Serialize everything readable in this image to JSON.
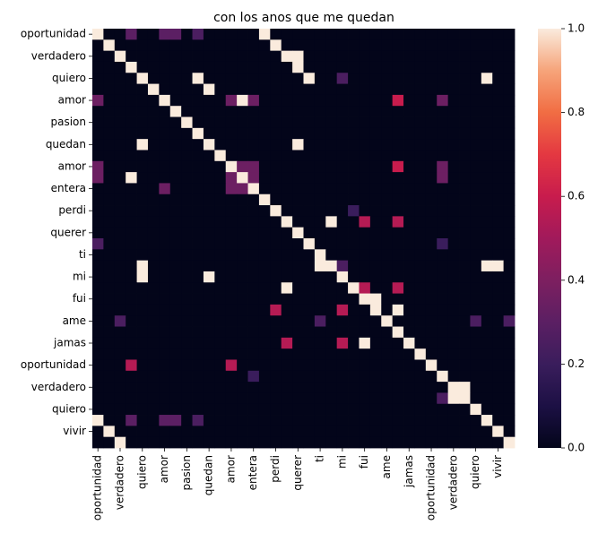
{
  "chart_data": {
    "type": "heatmap",
    "title": "con los anos que me quedan",
    "xlabel": "",
    "ylabel": "",
    "tokens": [
      "oportunidad",
      "",
      "verdadero",
      "",
      "quiero",
      "",
      "amor",
      "",
      "pasion",
      "",
      "quedan",
      "",
      "amor",
      "",
      "entera",
      "",
      "perdi",
      "",
      "querer",
      "",
      "ti",
      "",
      "mi",
      "",
      "fui",
      "",
      "ame",
      "",
      "jamas",
      "",
      "oportunidad",
      "",
      "verdadero",
      "",
      "quiero",
      "",
      "vivir",
      ""
    ],
    "x_tick_labels": [
      "oportunidad",
      "verdadero",
      "quiero",
      "amor",
      "pasion",
      "quedan",
      "amor",
      "entera",
      "perdi",
      "querer",
      "ti",
      "mi",
      "fui",
      "ame",
      "jamas",
      "oportunidad",
      "verdadero",
      "quiero",
      "vivir"
    ],
    "y_tick_labels": [
      "oportunidad",
      "verdadero",
      "quiero",
      "amor",
      "pasion",
      "quedan",
      "amor",
      "entera",
      "perdi",
      "querer",
      "ti",
      "mi",
      "fui",
      "ame",
      "jamas",
      "oportunidad",
      "verdadero",
      "quiero",
      "vivir"
    ],
    "value_range": [
      0,
      1
    ],
    "colormap": "rocket",
    "colorbar_ticks": [
      "0.0",
      "0.2",
      "0.4",
      "0.6",
      "0.8",
      "1.0"
    ],
    "nonzero_cells": [
      [
        0,
        0,
        1
      ],
      [
        0,
        3,
        0.3
      ],
      [
        0,
        6,
        0.3
      ],
      [
        0,
        7,
        0.3
      ],
      [
        0,
        9,
        0.25
      ],
      [
        0,
        15,
        1
      ],
      [
        1,
        1,
        1
      ],
      [
        1,
        16,
        1
      ],
      [
        2,
        2,
        1
      ],
      [
        2,
        17,
        1
      ],
      [
        2,
        18,
        1
      ],
      [
        3,
        3,
        1
      ],
      [
        3,
        18,
        1
      ],
      [
        4,
        4,
        1
      ],
      [
        4,
        9,
        1
      ],
      [
        4,
        19,
        1
      ],
      [
        4,
        22,
        0.25
      ],
      [
        4,
        35,
        1
      ],
      [
        5,
        5,
        1
      ],
      [
        5,
        10,
        1
      ],
      [
        6,
        0,
        0.35
      ],
      [
        6,
        6,
        1
      ],
      [
        6,
        12,
        0.35
      ],
      [
        6,
        13,
        1
      ],
      [
        6,
        14,
        0.35
      ],
      [
        6,
        27,
        0.6
      ],
      [
        6,
        31,
        0.35
      ],
      [
        7,
        7,
        1
      ],
      [
        8,
        8,
        1
      ],
      [
        9,
        9,
        1
      ],
      [
        10,
        10,
        1
      ],
      [
        10,
        4,
        1
      ],
      [
        10,
        18,
        1
      ],
      [
        11,
        11,
        1
      ],
      [
        12,
        0,
        0.35
      ],
      [
        12,
        12,
        1
      ],
      [
        12,
        13,
        0.35
      ],
      [
        12,
        14,
        0.35
      ],
      [
        12,
        27,
        0.6
      ],
      [
        12,
        31,
        0.35
      ],
      [
        13,
        0,
        0.35
      ],
      [
        13,
        3,
        1
      ],
      [
        13,
        12,
        0.35
      ],
      [
        13,
        13,
        1
      ],
      [
        13,
        14,
        0.35
      ],
      [
        13,
        31,
        0.35
      ],
      [
        14,
        6,
        0.35
      ],
      [
        14,
        12,
        0.35
      ],
      [
        14,
        13,
        0.35
      ],
      [
        14,
        14,
        1
      ],
      [
        15,
        15,
        1
      ],
      [
        16,
        16,
        1
      ],
      [
        16,
        23,
        0.2
      ],
      [
        17,
        17,
        1
      ],
      [
        17,
        21,
        1
      ],
      [
        17,
        24,
        0.55
      ],
      [
        17,
        27,
        0.55
      ],
      [
        18,
        18,
        1
      ],
      [
        19,
        0,
        0.25
      ],
      [
        19,
        19,
        1
      ],
      [
        19,
        31,
        0.2
      ],
      [
        20,
        20,
        1
      ],
      [
        21,
        4,
        1
      ],
      [
        21,
        20,
        1
      ],
      [
        21,
        21,
        1
      ],
      [
        21,
        22,
        0.25
      ],
      [
        21,
        35,
        1
      ],
      [
        21,
        36,
        1
      ],
      [
        22,
        4,
        1
      ],
      [
        22,
        10,
        1
      ],
      [
        22,
        22,
        1
      ],
      [
        23,
        17,
        1
      ],
      [
        23,
        23,
        1
      ],
      [
        23,
        24,
        0.55
      ],
      [
        23,
        27,
        0.55
      ],
      [
        24,
        24,
        1
      ],
      [
        24,
        25,
        1
      ],
      [
        25,
        16,
        0.55
      ],
      [
        25,
        22,
        0.55
      ],
      [
        25,
        25,
        1
      ],
      [
        25,
        27,
        1
      ],
      [
        26,
        2,
        0.25
      ],
      [
        26,
        20,
        0.25
      ],
      [
        26,
        26,
        1
      ],
      [
        26,
        34,
        0.25
      ],
      [
        26,
        37,
        0.25
      ],
      [
        27,
        27,
        1
      ],
      [
        28,
        17,
        0.55
      ],
      [
        28,
        22,
        0.55
      ],
      [
        28,
        24,
        1
      ],
      [
        28,
        28,
        1
      ],
      [
        29,
        29,
        1
      ],
      [
        30,
        3,
        0.55
      ],
      [
        30,
        12,
        0.55
      ],
      [
        30,
        30,
        1
      ],
      [
        31,
        14,
        0.2
      ],
      [
        31,
        31,
        1
      ],
      [
        32,
        32,
        1
      ],
      [
        32,
        33,
        1
      ],
      [
        33,
        33,
        1
      ],
      [
        33,
        31,
        0.25
      ],
      [
        33,
        32,
        1
      ],
      [
        34,
        34,
        1
      ],
      [
        35,
        0,
        1
      ],
      [
        35,
        3,
        0.3
      ],
      [
        35,
        6,
        0.3
      ],
      [
        35,
        7,
        0.3
      ],
      [
        35,
        9,
        0.25
      ],
      [
        35,
        35,
        1
      ],
      [
        36,
        1,
        1
      ],
      [
        36,
        36,
        1
      ],
      [
        37,
        2,
        1
      ],
      [
        37,
        37,
        1
      ]
    ]
  }
}
